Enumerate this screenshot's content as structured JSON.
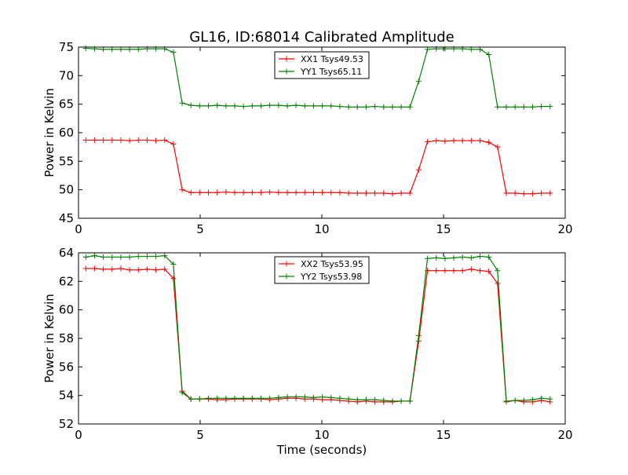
{
  "chart_data": [
    {
      "type": "line",
      "title": "GL16, ID:68014 Calibrated Amplitude",
      "xlabel": "",
      "ylabel": "Power in Kelvin",
      "xlim": [
        0,
        20
      ],
      "ylim": [
        45,
        75
      ],
      "xticks": [
        0,
        5,
        10,
        15,
        20
      ],
      "yticks": [
        45,
        50,
        55,
        60,
        65,
        70,
        75
      ],
      "grid": false,
      "legend_position": "top-center",
      "x": [
        0.3,
        0.66,
        1.02,
        1.38,
        1.74,
        2.1,
        2.46,
        2.82,
        3.18,
        3.54,
        3.9,
        4.26,
        4.62,
        4.98,
        5.34,
        5.7,
        6.06,
        6.42,
        6.78,
        7.14,
        7.5,
        7.86,
        8.22,
        8.58,
        8.94,
        9.3,
        9.66,
        10.02,
        10.38,
        10.74,
        11.1,
        11.46,
        11.82,
        12.18,
        12.54,
        12.9,
        13.26,
        13.62,
        13.98,
        14.34,
        14.7,
        15.06,
        15.42,
        15.78,
        16.14,
        16.5,
        16.86,
        17.22,
        17.58,
        17.94,
        18.3,
        18.66,
        19.02,
        19.38
      ],
      "series": [
        {
          "name": "XX1 Tsys49.53",
          "color": "#ff0000",
          "values": [
            58.7,
            58.7,
            58.7,
            58.7,
            58.7,
            58.6,
            58.7,
            58.7,
            58.6,
            58.7,
            58.0,
            50.0,
            49.5,
            49.5,
            49.5,
            49.5,
            49.6,
            49.5,
            49.5,
            49.5,
            49.5,
            49.6,
            49.5,
            49.5,
            49.5,
            49.5,
            49.5,
            49.5,
            49.5,
            49.5,
            49.4,
            49.4,
            49.4,
            49.4,
            49.4,
            49.3,
            49.4,
            49.4,
            53.5,
            58.4,
            58.6,
            58.5,
            58.6,
            58.6,
            58.6,
            58.6,
            58.3,
            57.5,
            49.4,
            49.4,
            49.3,
            49.3,
            49.4,
            49.4
          ]
        },
        {
          "name": "YY1 Tsys65.11",
          "color": "#008000",
          "values": [
            74.8,
            74.7,
            74.6,
            74.6,
            74.6,
            74.6,
            74.6,
            74.7,
            74.7,
            74.7,
            74.1,
            65.2,
            64.8,
            64.7,
            64.7,
            64.8,
            64.7,
            64.7,
            64.6,
            64.7,
            64.7,
            64.8,
            64.8,
            64.7,
            64.8,
            64.7,
            64.7,
            64.7,
            64.7,
            64.6,
            64.5,
            64.5,
            64.5,
            64.6,
            64.5,
            64.5,
            64.5,
            64.5,
            69.0,
            74.6,
            74.7,
            74.7,
            74.7,
            74.7,
            74.6,
            74.6,
            73.7,
            64.5,
            64.5,
            64.5,
            64.5,
            64.5,
            64.6,
            64.6
          ]
        }
      ]
    },
    {
      "type": "line",
      "title": "",
      "xlabel": "Time (seconds)",
      "ylabel": "Power in Kelvin",
      "xlim": [
        0,
        20
      ],
      "ylim": [
        52,
        64
      ],
      "xticks": [
        0,
        5,
        10,
        15,
        20
      ],
      "yticks": [
        52,
        54,
        56,
        58,
        60,
        62,
        64
      ],
      "grid": false,
      "legend_position": "top-center",
      "x": [
        0.3,
        0.66,
        1.02,
        1.38,
        1.74,
        2.1,
        2.46,
        2.82,
        3.18,
        3.54,
        3.9,
        4.26,
        4.62,
        4.98,
        5.34,
        5.7,
        6.06,
        6.42,
        6.78,
        7.14,
        7.5,
        7.86,
        8.22,
        8.58,
        8.94,
        9.3,
        9.66,
        10.02,
        10.38,
        10.74,
        11.1,
        11.46,
        11.82,
        12.18,
        12.54,
        12.9,
        13.26,
        13.62,
        13.98,
        14.34,
        14.7,
        15.06,
        15.42,
        15.78,
        16.14,
        16.5,
        16.86,
        17.22,
        17.58,
        17.94,
        18.3,
        18.66,
        19.02,
        19.38
      ],
      "series": [
        {
          "name": "XX2 Tsys53.95",
          "color": "#ff0000",
          "values": [
            62.9,
            62.9,
            62.85,
            62.85,
            62.9,
            62.8,
            62.8,
            62.85,
            62.8,
            62.85,
            62.2,
            54.3,
            53.75,
            53.75,
            53.75,
            53.7,
            53.7,
            53.75,
            53.75,
            53.75,
            53.75,
            53.7,
            53.75,
            53.8,
            53.8,
            53.75,
            53.75,
            53.7,
            53.7,
            53.65,
            53.6,
            53.55,
            53.6,
            53.55,
            53.55,
            53.55,
            53.6,
            53.6,
            57.8,
            62.75,
            62.75,
            62.75,
            62.75,
            62.75,
            62.85,
            62.75,
            62.7,
            61.85,
            53.55,
            53.65,
            53.55,
            53.55,
            53.65,
            53.55
          ]
        },
        {
          "name": "YY2 Tsys53.98",
          "color": "#008000",
          "values": [
            63.7,
            63.8,
            63.7,
            63.7,
            63.7,
            63.7,
            63.75,
            63.75,
            63.75,
            63.8,
            63.2,
            54.2,
            53.75,
            53.75,
            53.8,
            53.8,
            53.8,
            53.8,
            53.8,
            53.8,
            53.8,
            53.8,
            53.85,
            53.9,
            53.9,
            53.9,
            53.85,
            53.9,
            53.85,
            53.8,
            53.75,
            53.7,
            53.7,
            53.7,
            53.65,
            53.6,
            53.6,
            53.6,
            58.2,
            63.6,
            63.65,
            63.6,
            63.65,
            63.7,
            63.65,
            63.75,
            63.7,
            62.75,
            53.6,
            53.65,
            53.65,
            53.7,
            53.8,
            53.75
          ]
        }
      ]
    }
  ]
}
